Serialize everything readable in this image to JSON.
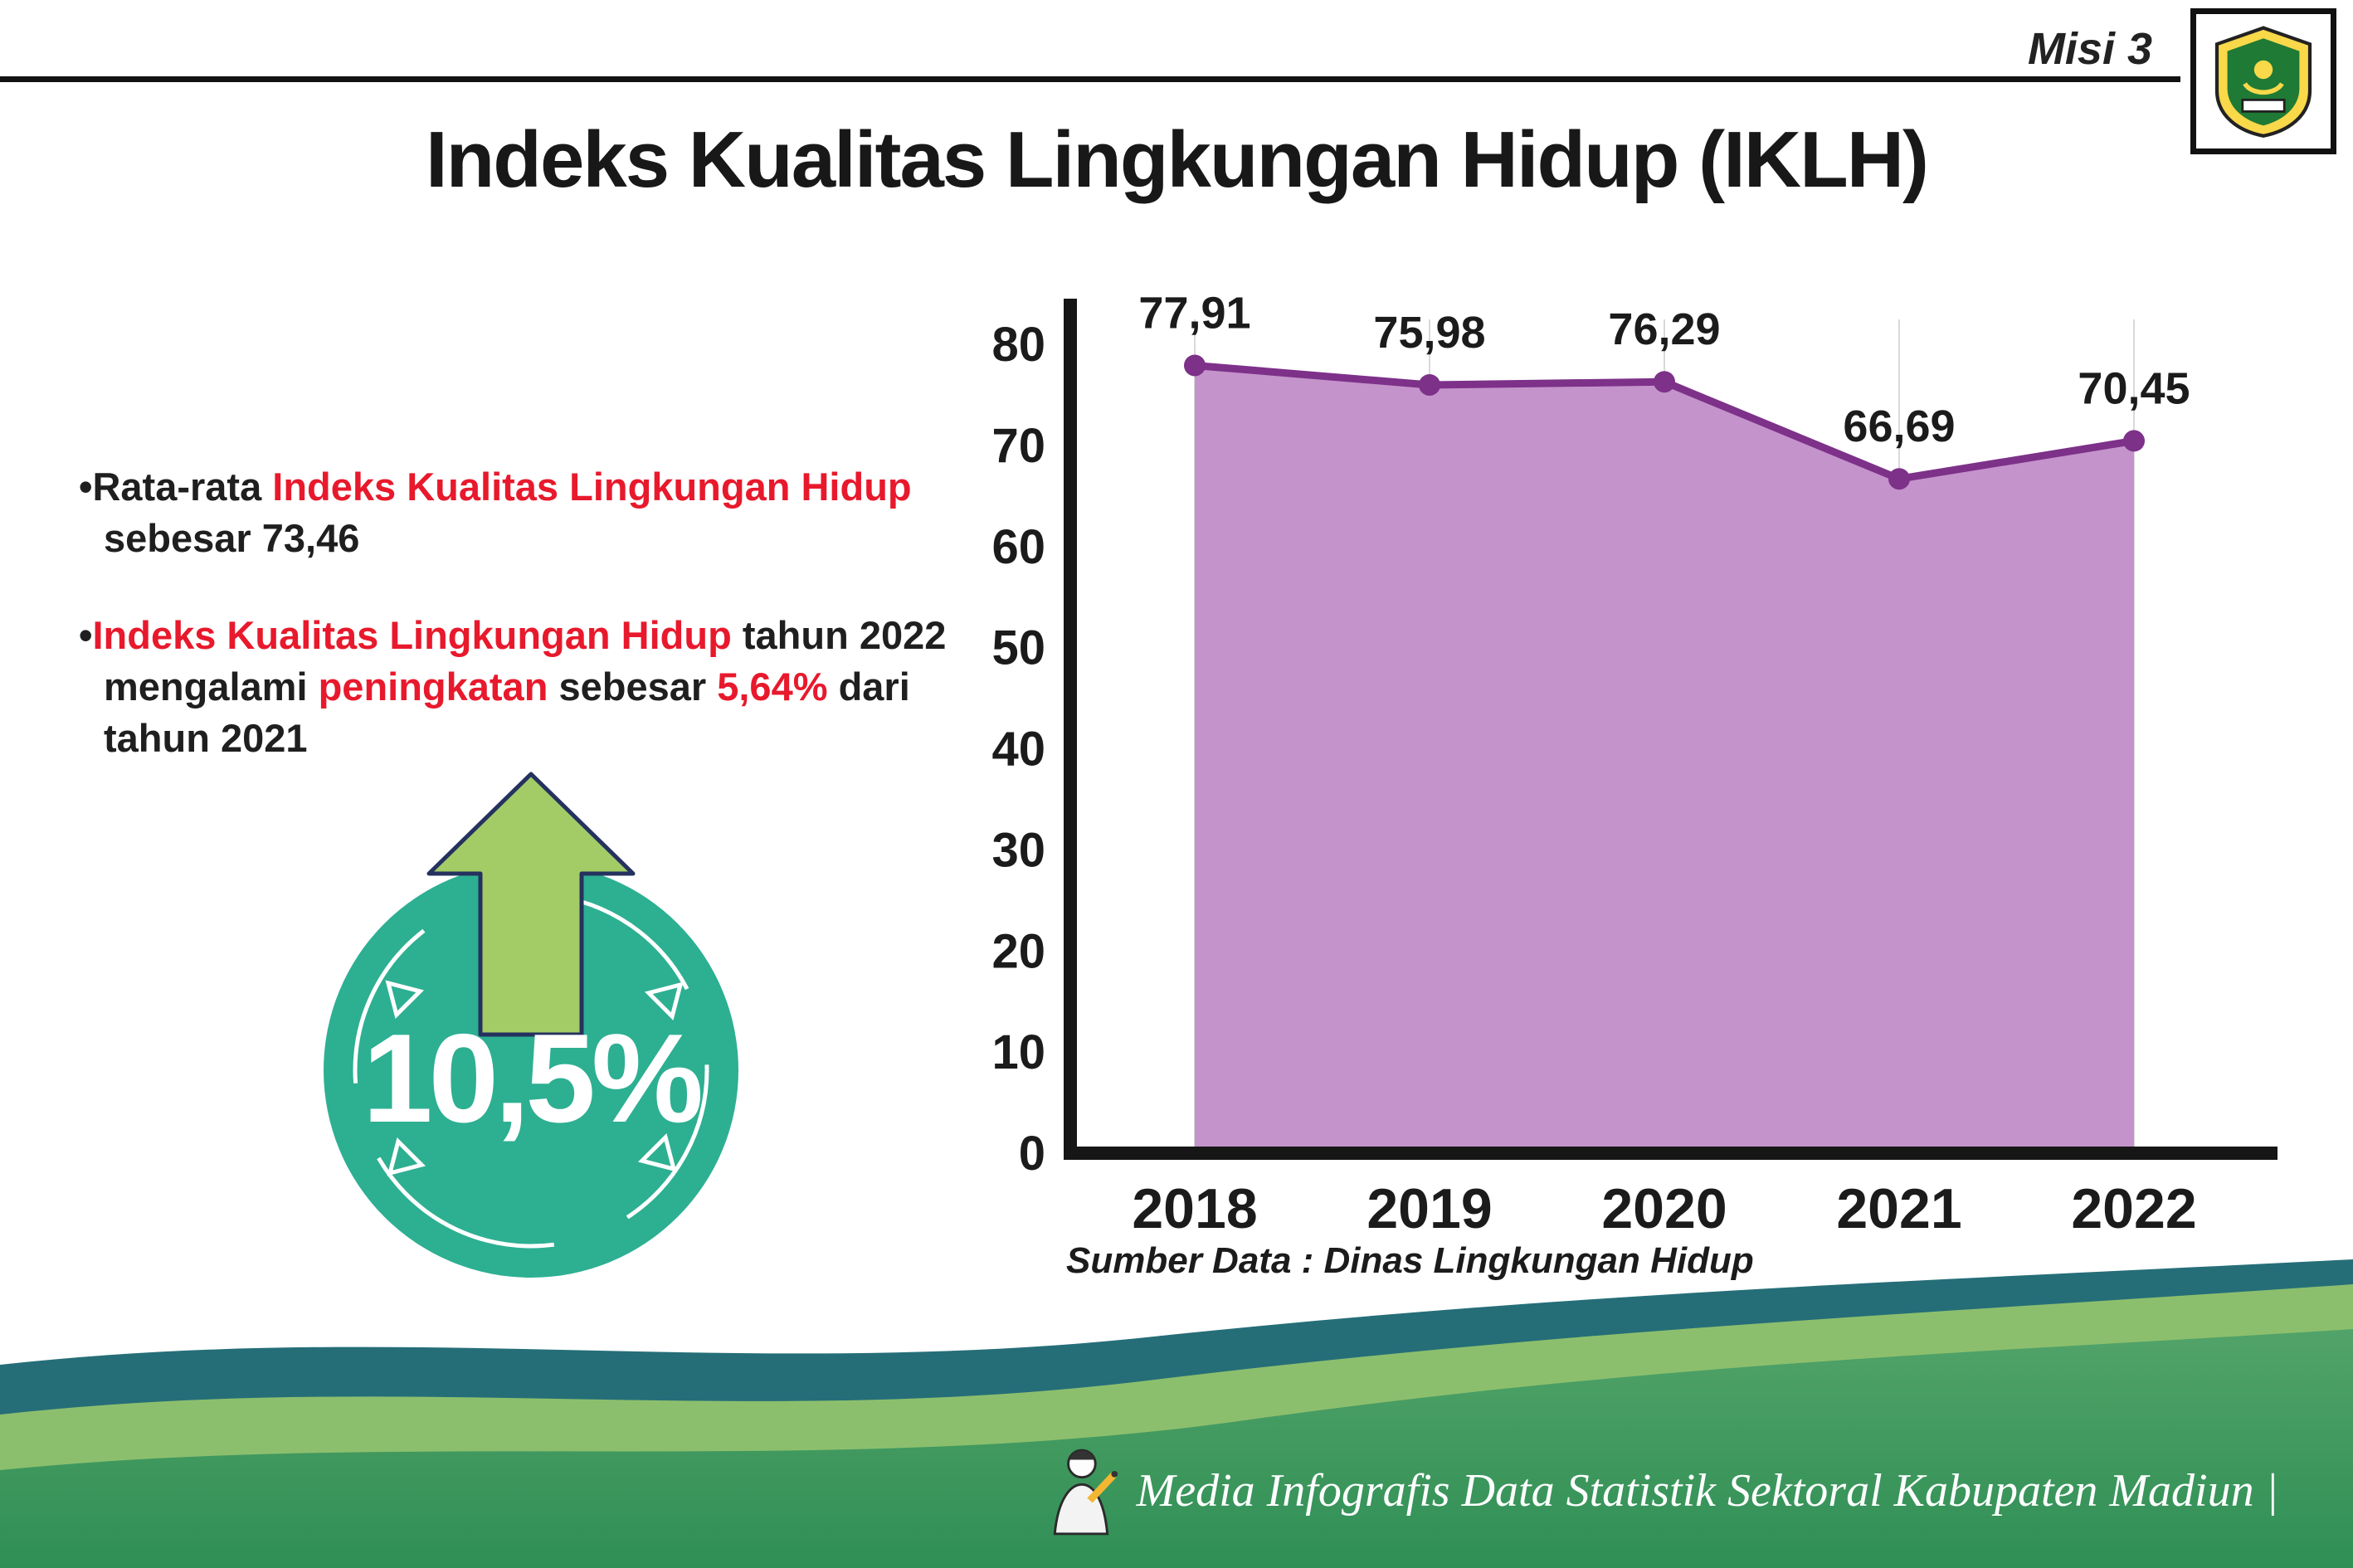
{
  "header": {
    "misi_label": "Misi 3",
    "title": "Indeks Kualitas Lingkungan Hidup (IKLH)"
  },
  "bullets": [
    {
      "marker": "•",
      "segments": [
        {
          "text": "Rata-rata ",
          "style": "black"
        },
        {
          "text": "Indeks Kualitas Lingkungan Hidup",
          "style": "red"
        },
        {
          "text": " sebesar 73,46",
          "style": "black"
        }
      ]
    },
    {
      "marker": "•",
      "segments": [
        {
          "text": "Indeks Kualitas Lingkungan Hidup",
          "style": "red"
        },
        {
          "text": " tahun 2022 mengalami ",
          "style": "black"
        },
        {
          "text": "peningkatan",
          "style": "red"
        },
        {
          "text": " sebesar ",
          "style": "black"
        },
        {
          "text": "5,64%",
          "style": "red"
        },
        {
          "text": " dari tahun 2021",
          "style": "black"
        }
      ]
    }
  ],
  "badge": {
    "value": "10,5%",
    "direction": "up"
  },
  "chart_data": {
    "type": "area",
    "title": "Indeks Kualitas Lingkungan Hidup (IKLH)",
    "categories": [
      "2018",
      "2019",
      "2020",
      "2021",
      "2022"
    ],
    "values": [
      77.91,
      75.98,
      76.29,
      66.69,
      70.45
    ],
    "point_labels": [
      "77,91",
      "75,98",
      "76,29",
      "66,69",
      "70,45"
    ],
    "ylim": [
      0,
      80
    ],
    "yticks": [
      0,
      10,
      20,
      30,
      40,
      50,
      60,
      70,
      80
    ],
    "xlabel": "",
    "ylabel": "",
    "legend": "none",
    "grid": "light vertical gridlines at each year",
    "source": "Sumber Data : Dinas Lingkungan Hidup",
    "colors": {
      "area": "#c493cb",
      "line": "#7d3189",
      "point": "#7d3189",
      "axis": "#161616",
      "grid": "#d9d9d9"
    }
  },
  "footer": {
    "credit": "Media Infografis Data Statistik Sektoral Kabupaten Madiun |"
  },
  "colors": {
    "accent_red": "#e8192c",
    "badge_teal": "#2daf92",
    "arrow_green": "#a3cc67",
    "wave_dark_teal": "#256e78",
    "wave_light_green": "#8cbf6d",
    "band_green_top": "#52a369",
    "band_green_bottom": "#2f8f55"
  }
}
